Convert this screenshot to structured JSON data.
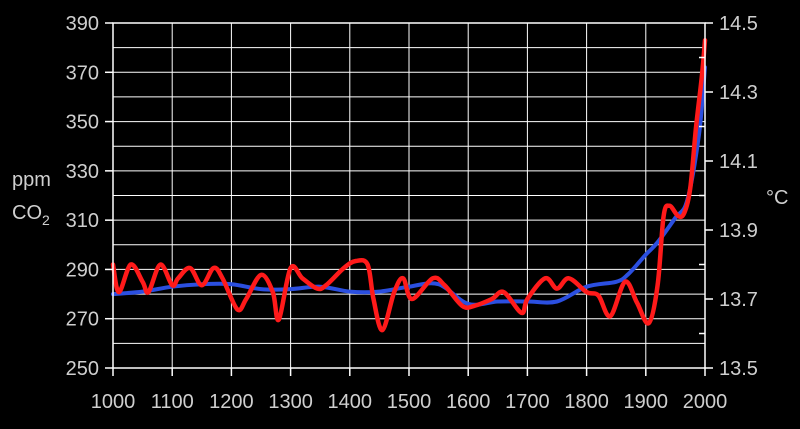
{
  "chart_data": {
    "type": "line",
    "title": "",
    "xlabel": "",
    "xlim": [
      1000,
      2000
    ],
    "x_ticks": [
      "1000",
      "1100",
      "1200",
      "1300",
      "1400",
      "1500",
      "1600",
      "1700",
      "1800",
      "1900",
      "2000"
    ],
    "left_axis": {
      "label_line1": "ppm",
      "label_line2": "CO",
      "label_subscript": "2",
      "ylim": [
        250,
        390
      ],
      "ticks": [
        "250",
        "270",
        "290",
        "310",
        "330",
        "350",
        "370",
        "390"
      ]
    },
    "right_axis": {
      "label": "°C",
      "ylim": [
        13.5,
        14.5
      ],
      "ticks": [
        "13.5",
        "13.7",
        "13.9",
        "14.1",
        "14.3",
        "14.5"
      ]
    },
    "grid": true,
    "series": [
      {
        "axis": "left",
        "color": "#2b4fe0",
        "x": [
          1000,
          1050,
          1100,
          1150,
          1200,
          1250,
          1300,
          1350,
          1400,
          1450,
          1500,
          1550,
          1600,
          1650,
          1700,
          1750,
          1800,
          1850,
          1870,
          1900,
          1920,
          1950,
          1970,
          1990,
          2000
        ],
        "y": [
          280,
          281,
          283,
          284,
          284,
          282,
          282,
          283,
          281,
          281,
          283,
          284,
          276,
          277,
          277,
          277,
          283,
          285,
          288,
          296,
          301,
          311,
          318,
          345,
          372
        ]
      },
      {
        "axis": "right",
        "color": "#ff1a1a",
        "x": [
          1000,
          1010,
          1030,
          1050,
          1060,
          1080,
          1100,
          1110,
          1130,
          1150,
          1170,
          1185,
          1210,
          1225,
          1250,
          1270,
          1280,
          1300,
          1320,
          1345,
          1360,
          1390,
          1410,
          1430,
          1440,
          1455,
          1475,
          1490,
          1505,
          1540,
          1560,
          1590,
          1610,
          1640,
          1660,
          1690,
          1700,
          1730,
          1750,
          1770,
          1800,
          1820,
          1840,
          1865,
          1885,
          1905,
          1920,
          1930,
          1940,
          1955,
          1965,
          1975,
          1985,
          1995,
          2000
        ],
        "y": [
          13.8,
          13.72,
          13.8,
          13.75,
          13.72,
          13.8,
          13.74,
          13.76,
          13.79,
          13.74,
          13.79,
          13.76,
          13.67,
          13.7,
          13.77,
          13.72,
          13.64,
          13.79,
          13.76,
          13.73,
          13.74,
          13.79,
          13.81,
          13.8,
          13.7,
          13.61,
          13.72,
          13.76,
          13.7,
          13.76,
          13.74,
          13.68,
          13.68,
          13.7,
          13.72,
          13.66,
          13.7,
          13.76,
          13.73,
          13.76,
          13.72,
          13.71,
          13.65,
          13.75,
          13.69,
          13.63,
          13.74,
          13.94,
          13.97,
          13.94,
          13.95,
          14.02,
          14.2,
          14.35,
          14.45
        ]
      }
    ]
  }
}
